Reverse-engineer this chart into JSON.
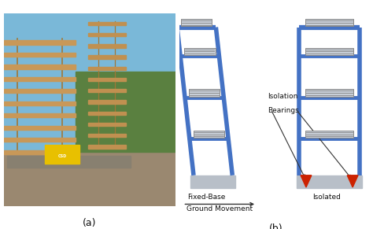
{
  "bg_color": "#ffffff",
  "frame_color": "#4472c4",
  "slab_inner_color": "#c8cfd8",
  "slab_inner_edge": "#888888",
  "base_color": "#b8bfc8",
  "bearing_red": "#cc2200",
  "text_color": "#111111",
  "label_a": "(a)",
  "label_b": "(b)",
  "label_fixed": "Fixed-Base",
  "label_isolated": "Isolated",
  "label_bearings_line1": "Isolation",
  "label_bearings_line2": "Bearings",
  "label_ground": "Ground Movement",
  "frame_lw": 4.0,
  "floor_lw": 3.5,
  "fig_width": 4.74,
  "fig_height": 2.91,
  "dpi": 100,
  "photo_sky": "#7ab8d8",
  "photo_ground": "#9a8870",
  "photo_tree": "#5a8040",
  "photo_struct": "#c89858",
  "photo_column": "#a07838"
}
